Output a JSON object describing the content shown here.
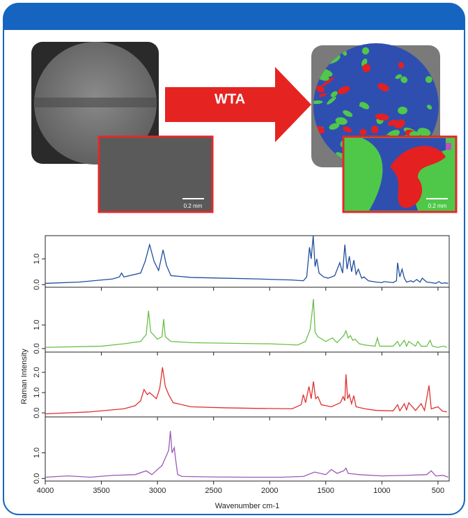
{
  "figure": {
    "arrow_label": "WTA",
    "scale_bar_left": "0.2 mm",
    "scale_bar_right": "0.2 mm"
  },
  "axis_labels": {
    "y": "Raman Intensity",
    "x": "Wavenumber cm-1"
  },
  "chart_data": [
    {
      "type": "line",
      "color": "#1f4e9c",
      "xlim": [
        4000,
        400
      ],
      "ylim": [
        -0.1,
        1.9
      ],
      "xticks": [
        4000,
        3500,
        3000,
        2500,
        2000,
        1500,
        1000,
        500
      ],
      "yticks": [
        {
          "value": 0,
          "label": "0.0"
        },
        {
          "value": 1,
          "label": "1.0"
        }
      ],
      "x": [
        4000,
        3700,
        3400,
        3340,
        3320,
        3300,
        3150,
        3110,
        3070,
        3030,
        2990,
        2950,
        2920,
        2880,
        2700,
        2400,
        2100,
        1800,
        1700,
        1670,
        1645,
        1630,
        1612,
        1595,
        1580,
        1560,
        1520,
        1480,
        1420,
        1375,
        1350,
        1330,
        1310,
        1290,
        1270,
        1250,
        1230,
        1210,
        1180,
        1160,
        1120,
        1050,
        1000,
        980,
        900,
        870,
        860,
        840,
        820,
        800,
        780,
        740,
        720,
        690,
        660,
        640,
        600,
        560,
        520,
        490,
        470,
        440,
        410
      ],
      "values": [
        0.05,
        0.1,
        0.22,
        0.3,
        0.45,
        0.3,
        0.45,
        0.9,
        1.55,
        0.9,
        0.55,
        1.35,
        0.75,
        0.35,
        0.28,
        0.25,
        0.22,
        0.18,
        0.15,
        0.3,
        1.45,
        1.0,
        1.9,
        0.7,
        1.0,
        0.45,
        0.3,
        0.25,
        0.35,
        0.85,
        0.45,
        1.55,
        0.6,
        1.1,
        0.5,
        0.95,
        0.4,
        0.6,
        0.25,
        0.3,
        0.15,
        0.1,
        0.08,
        0.12,
        0.08,
        0.15,
        0.85,
        0.3,
        0.6,
        0.25,
        0.1,
        0.15,
        0.1,
        0.2,
        0.1,
        0.25,
        0.1,
        0.08,
        0.05,
        0.12,
        0.05,
        0.07,
        0.05
      ]
    },
    {
      "type": "line",
      "color": "#6abf4b",
      "xlim": [
        4000,
        400
      ],
      "ylim": [
        -0.15,
        2.6
      ],
      "xticks": [
        4000,
        3500,
        3000,
        2500,
        2000,
        1500,
        1000,
        500
      ],
      "yticks": [
        {
          "value": 0,
          "label": "0.0"
        },
        {
          "value": 1,
          "label": "1.0"
        }
      ],
      "x": [
        4000,
        3500,
        3300,
        3150,
        3100,
        3080,
        3060,
        3000,
        2960,
        2945,
        2930,
        2880,
        2700,
        2300,
        2000,
        1750,
        1680,
        1640,
        1625,
        1610,
        1595,
        1570,
        1500,
        1440,
        1400,
        1340,
        1320,
        1300,
        1280,
        1260,
        1240,
        1200,
        1150,
        1060,
        1040,
        1020,
        900,
        860,
        840,
        800,
        780,
        760,
        700,
        680,
        650,
        600,
        570,
        550,
        500,
        450,
        420
      ],
      "values": [
        0.05,
        0.1,
        0.2,
        0.3,
        0.6,
        1.6,
        0.7,
        0.4,
        0.5,
        1.25,
        0.5,
        0.3,
        0.25,
        0.22,
        0.2,
        0.15,
        0.3,
        0.8,
        1.4,
        2.1,
        0.7,
        0.5,
        0.3,
        0.45,
        0.25,
        0.55,
        0.75,
        0.45,
        0.55,
        0.35,
        0.4,
        0.2,
        0.15,
        0.1,
        0.45,
        0.1,
        0.1,
        0.3,
        0.1,
        0.35,
        0.1,
        0.3,
        0.1,
        0.3,
        0.1,
        0.1,
        0.35,
        0.1,
        0.05,
        0.1,
        0.05
      ]
    },
    {
      "type": "line",
      "color": "#e03030",
      "xlim": [
        4000,
        400
      ],
      "ylim": [
        -0.2,
        3.0
      ],
      "xticks": [
        4000,
        3500,
        3000,
        2500,
        2000,
        1500,
        1000,
        500
      ],
      "yticks": [
        {
          "value": 0,
          "label": "0.0"
        },
        {
          "value": 1,
          "label": "1.0"
        },
        {
          "value": 2,
          "label": "2.0"
        }
      ],
      "x": [
        4000,
        3600,
        3300,
        3200,
        3150,
        3120,
        3090,
        3070,
        3010,
        2980,
        2955,
        2930,
        2900,
        2860,
        2700,
        2400,
        2100,
        1800,
        1720,
        1700,
        1680,
        1650,
        1630,
        1610,
        1590,
        1570,
        1540,
        1450,
        1370,
        1345,
        1330,
        1320,
        1305,
        1290,
        1270,
        1250,
        1230,
        1150,
        1050,
        900,
        860,
        840,
        800,
        780,
        760,
        700,
        650,
        620,
        580,
        560,
        500,
        460,
        420
      ],
      "values": [
        -0.05,
        0.05,
        0.2,
        0.35,
        0.6,
        1.15,
        0.9,
        1.0,
        0.7,
        1.2,
        2.25,
        1.3,
        0.9,
        0.5,
        0.3,
        0.25,
        0.22,
        0.2,
        0.4,
        0.9,
        0.5,
        1.3,
        0.7,
        1.55,
        0.7,
        0.8,
        0.4,
        0.3,
        0.5,
        0.8,
        0.6,
        1.9,
        0.7,
        0.9,
        0.45,
        0.85,
        0.3,
        0.2,
        0.12,
        0.1,
        0.4,
        0.1,
        0.45,
        0.15,
        0.5,
        0.12,
        0.45,
        0.12,
        1.35,
        0.2,
        0.3,
        0.08,
        0.05
      ]
    },
    {
      "type": "line",
      "color": "#9b59b6",
      "xlim": [
        4000,
        400
      ],
      "ylim": [
        -0.1,
        2.4
      ],
      "xticks": [
        4000,
        3500,
        3000,
        2500,
        2000,
        1500,
        1000,
        500
      ],
      "yticks": [
        {
          "value": 0,
          "label": "0.0"
        },
        {
          "value": 1,
          "label": "1.0"
        }
      ],
      "x": [
        4000,
        3800,
        3600,
        3400,
        3200,
        3100,
        3050,
        3000,
        2960,
        2930,
        2900,
        2885,
        2870,
        2850,
        2840,
        2820,
        2780,
        2500,
        2200,
        1900,
        1700,
        1600,
        1500,
        1450,
        1400,
        1340,
        1320,
        1300,
        1200,
        1000,
        800,
        600,
        560,
        520,
        450,
        410
      ],
      "values": [
        0.05,
        0.1,
        0.05,
        0.12,
        0.15,
        0.3,
        0.15,
        0.35,
        0.5,
        0.8,
        1.1,
        1.85,
        1.0,
        1.2,
        0.8,
        0.15,
        0.08,
        0.06,
        0.05,
        0.05,
        0.08,
        0.25,
        0.15,
        0.35,
        0.2,
        0.3,
        0.4,
        0.2,
        0.15,
        0.1,
        0.12,
        0.15,
        0.3,
        0.1,
        0.12,
        0.05
      ]
    }
  ]
}
